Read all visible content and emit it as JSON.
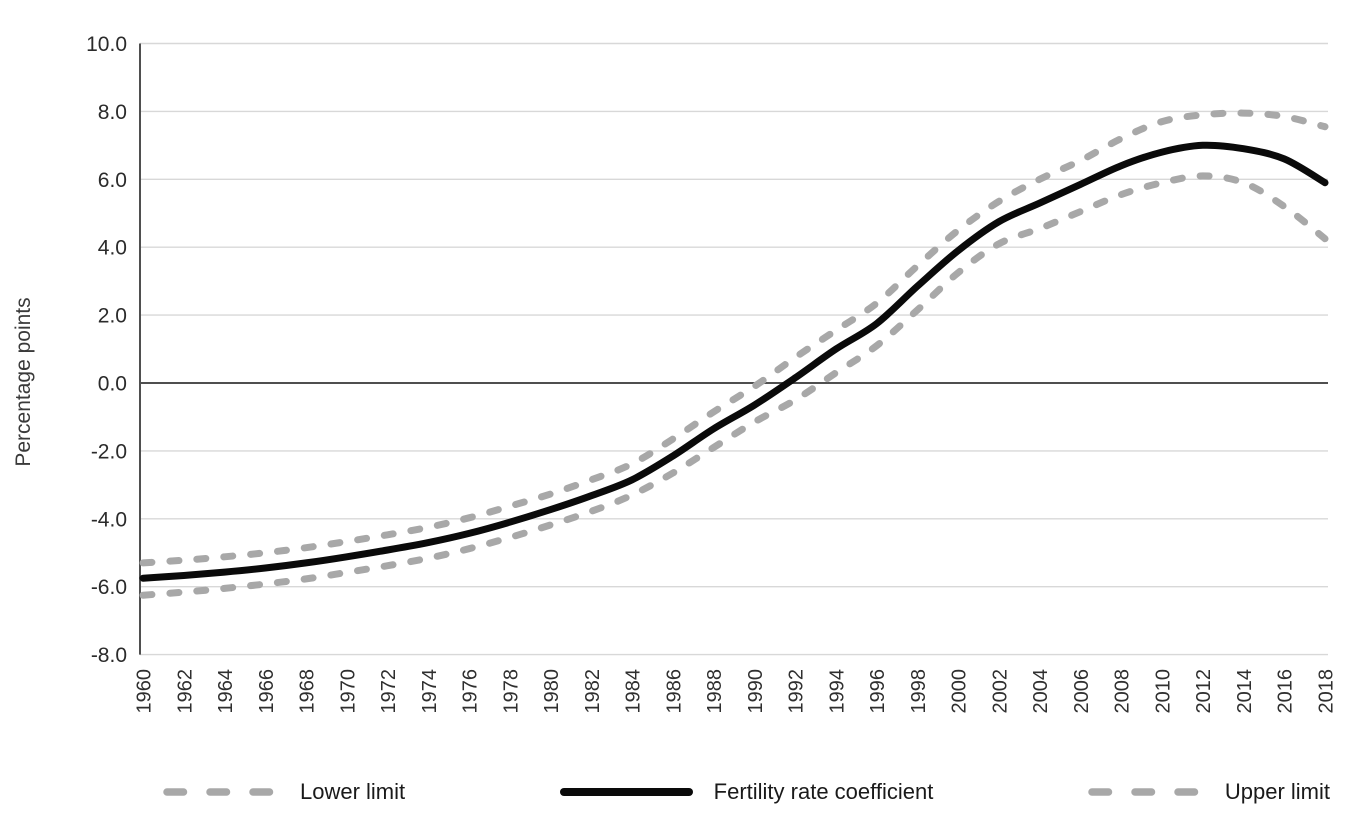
{
  "chart_data": {
    "type": "line",
    "title": "",
    "xlabel": "",
    "ylabel": "Percentage points",
    "ylim": [
      -8.0,
      10.0
    ],
    "y_step": 2.0,
    "y_tick_decimals": 1,
    "xlim": [
      1960,
      2018
    ],
    "x_tick_step": 2,
    "grid": true,
    "zero_line": true,
    "legend_position": "bottom",
    "x": [
      1960,
      1962,
      1964,
      1966,
      1968,
      1970,
      1972,
      1974,
      1976,
      1978,
      1980,
      1982,
      1984,
      1986,
      1988,
      1990,
      1992,
      1994,
      1996,
      1998,
      2000,
      2002,
      2004,
      2006,
      2008,
      2010,
      2012,
      2014,
      2016,
      2018
    ],
    "series": [
      {
        "name": "Lower limit",
        "style": "dashed",
        "color": "#a8a8a8",
        "values": [
          -6.25,
          -6.16,
          -6.05,
          -5.92,
          -5.77,
          -5.58,
          -5.38,
          -5.16,
          -4.88,
          -4.55,
          -4.18,
          -3.78,
          -3.3,
          -2.65,
          -1.9,
          -1.15,
          -0.5,
          0.3,
          1.1,
          2.15,
          3.25,
          4.1,
          4.55,
          5.05,
          5.55,
          5.9,
          6.1,
          5.9,
          5.2,
          4.25
        ]
      },
      {
        "name": "Fertility rate coefficient",
        "style": "solid",
        "color": "#0a0a0a",
        "values": [
          -5.75,
          -5.67,
          -5.57,
          -5.45,
          -5.3,
          -5.12,
          -4.92,
          -4.7,
          -4.43,
          -4.1,
          -3.73,
          -3.32,
          -2.85,
          -2.15,
          -1.35,
          -0.65,
          0.15,
          1.0,
          1.75,
          2.85,
          3.9,
          4.75,
          5.3,
          5.85,
          6.4,
          6.8,
          7.0,
          6.9,
          6.6,
          5.9
        ]
      },
      {
        "name": "Upper limit",
        "style": "dashed",
        "color": "#a8a8a8",
        "values": [
          -5.3,
          -5.22,
          -5.12,
          -5.0,
          -4.85,
          -4.67,
          -4.47,
          -4.25,
          -3.97,
          -3.63,
          -3.27,
          -2.85,
          -2.38,
          -1.65,
          -0.85,
          -0.1,
          0.75,
          1.55,
          2.35,
          3.45,
          4.5,
          5.35,
          6.0,
          6.55,
          7.2,
          7.7,
          7.9,
          7.95,
          7.85,
          7.55
        ]
      }
    ],
    "colors": {
      "grid": "#d8d8d8",
      "zero_line": "#4f4f4f",
      "axis_line": "#4f4f4f",
      "tick_text": "#2b2b2b",
      "background": "#ffffff"
    }
  }
}
